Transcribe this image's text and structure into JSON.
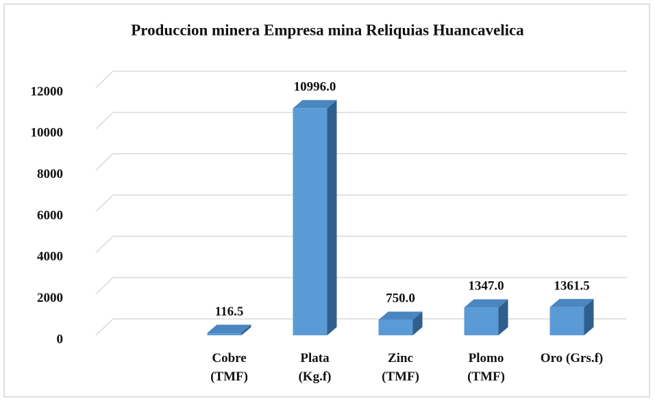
{
  "chart_data": {
    "type": "bar3d",
    "title": "Produccion minera Empresa mina Reliquias Huancavelica",
    "categories": [
      null,
      "Cobre\n(TMF)",
      "Plata\n(Kg.f)",
      "Zinc\n(TMF)",
      "Plomo\n(TMF)",
      "Oro (Grs.f)"
    ],
    "values": [
      null,
      116.5,
      10996,
      750,
      1347,
      1361.5
    ],
    "value_labels": [
      null,
      "116.5",
      "10996.0",
      "750.0",
      "1347.0",
      "1361.5"
    ],
    "color": "#5b9bd5",
    "ylim": [
      0,
      12000
    ],
    "yticks": [
      0,
      2000,
      4000,
      6000,
      8000,
      10000,
      12000
    ],
    "grid": true
  }
}
